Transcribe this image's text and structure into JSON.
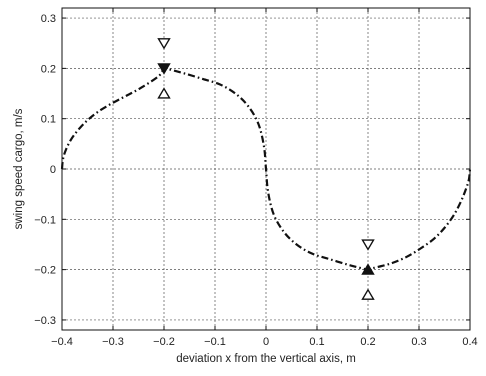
{
  "chart_data": {
    "type": "line",
    "title": "",
    "xlabel": "deviation x from the vertical axis, m",
    "ylabel": "swing speed cargo, m/s",
    "xlim": [
      -0.4,
      0.4
    ],
    "ylim": [
      -0.32,
      0.32
    ],
    "xticks": [
      -0.4,
      -0.3,
      -0.2,
      -0.1,
      0,
      0.1,
      0.2,
      0.3,
      0.4
    ],
    "xtick_labels": [
      "−0.4",
      "−0.3",
      "−0.2",
      "−0.1",
      "0",
      "0.1",
      "0.2",
      "0.3",
      "0.4"
    ],
    "yticks": [
      -0.3,
      -0.2,
      -0.1,
      0,
      0.1,
      0.2,
      0.3
    ],
    "ytick_labels": [
      "−0.3",
      "−0.2",
      "−0.1",
      "0",
      "0.1",
      "0.2",
      "0.3"
    ],
    "grid": true,
    "line_color": "#111111",
    "series": [
      {
        "style": "dash-dot",
        "points": [
          [
            -0.4,
            0.0
          ],
          [
            -0.398,
            0.02
          ],
          [
            -0.392,
            0.039
          ],
          [
            -0.382,
            0.059
          ],
          [
            -0.368,
            0.078
          ],
          [
            -0.35,
            0.097
          ],
          [
            -0.329,
            0.114
          ],
          [
            -0.303,
            0.13
          ],
          [
            -0.275,
            0.145
          ],
          [
            -0.244,
            0.162
          ],
          [
            -0.21,
            0.185
          ],
          [
            -0.2,
            0.2
          ],
          [
            -0.19,
            0.198
          ],
          [
            -0.16,
            0.19
          ],
          [
            -0.124,
            0.179
          ],
          [
            -0.09,
            0.168
          ],
          [
            -0.06,
            0.15
          ],
          [
            -0.035,
            0.125
          ],
          [
            -0.015,
            0.09
          ],
          [
            -0.004,
            0.045
          ],
          [
            0.0,
            0.0
          ],
          [
            0.004,
            -0.045
          ],
          [
            0.015,
            -0.09
          ],
          [
            0.035,
            -0.125
          ],
          [
            0.06,
            -0.15
          ],
          [
            0.09,
            -0.168
          ],
          [
            0.124,
            -0.179
          ],
          [
            0.16,
            -0.19
          ],
          [
            0.19,
            -0.198
          ],
          [
            0.2,
            -0.2
          ],
          [
            0.21,
            -0.197
          ],
          [
            0.244,
            -0.188
          ],
          [
            0.275,
            -0.175
          ],
          [
            0.303,
            -0.158
          ],
          [
            0.329,
            -0.139
          ],
          [
            0.35,
            -0.117
          ],
          [
            0.368,
            -0.092
          ],
          [
            0.382,
            -0.065
          ],
          [
            0.392,
            -0.04
          ],
          [
            0.398,
            -0.02
          ],
          [
            0.4,
            0.0
          ]
        ]
      }
    ],
    "markers": [
      {
        "x": -0.2,
        "y": 0.25,
        "symbol": "triangle-down",
        "filled": false
      },
      {
        "x": -0.2,
        "y": 0.2,
        "symbol": "triangle-down",
        "filled": true
      },
      {
        "x": -0.2,
        "y": 0.15,
        "symbol": "triangle-up",
        "filled": false
      },
      {
        "x": 0.2,
        "y": -0.15,
        "symbol": "triangle-down",
        "filled": false
      },
      {
        "x": 0.2,
        "y": -0.2,
        "symbol": "triangle-up",
        "filled": true
      },
      {
        "x": 0.2,
        "y": -0.25,
        "symbol": "triangle-up",
        "filled": false
      }
    ]
  }
}
